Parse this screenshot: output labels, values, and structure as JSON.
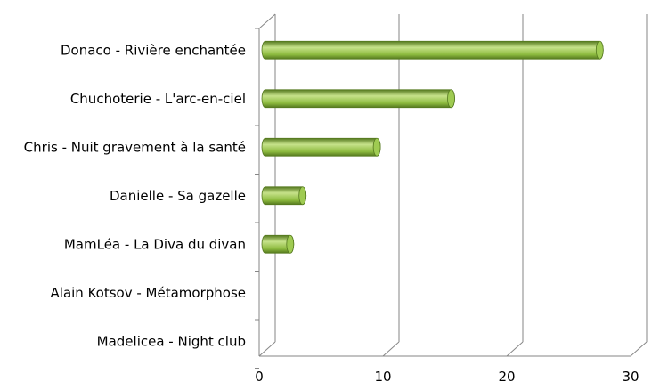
{
  "chart_data": {
    "type": "bar",
    "orientation": "horizontal",
    "style": "3d-cylinder",
    "categories": [
      "Donaco - Rivière enchantée",
      "Chuchoterie - L'arc-en-ciel",
      "Chris - Nuit gravement à la santé",
      "Danielle - Sa gazelle",
      "MamLéa - La Diva du divan",
      "Alain Kotsov - Métamorphose",
      "Madelicea - Night club"
    ],
    "values": [
      27,
      15,
      9,
      3,
      2,
      0,
      0
    ],
    "xlim": [
      0,
      30
    ],
    "xticks": [
      "0",
      "10",
      "20",
      "30"
    ],
    "title": "",
    "xlabel": "",
    "ylabel": "",
    "grid": "vertical",
    "legend": "none",
    "colors": {
      "bar_body": "#8dbb3f",
      "bar_light": "#c6e28a",
      "bar_dark": "#55791f",
      "bar_cap": "#9fcb52",
      "grid": "#868686",
      "axis": "#868686"
    }
  }
}
